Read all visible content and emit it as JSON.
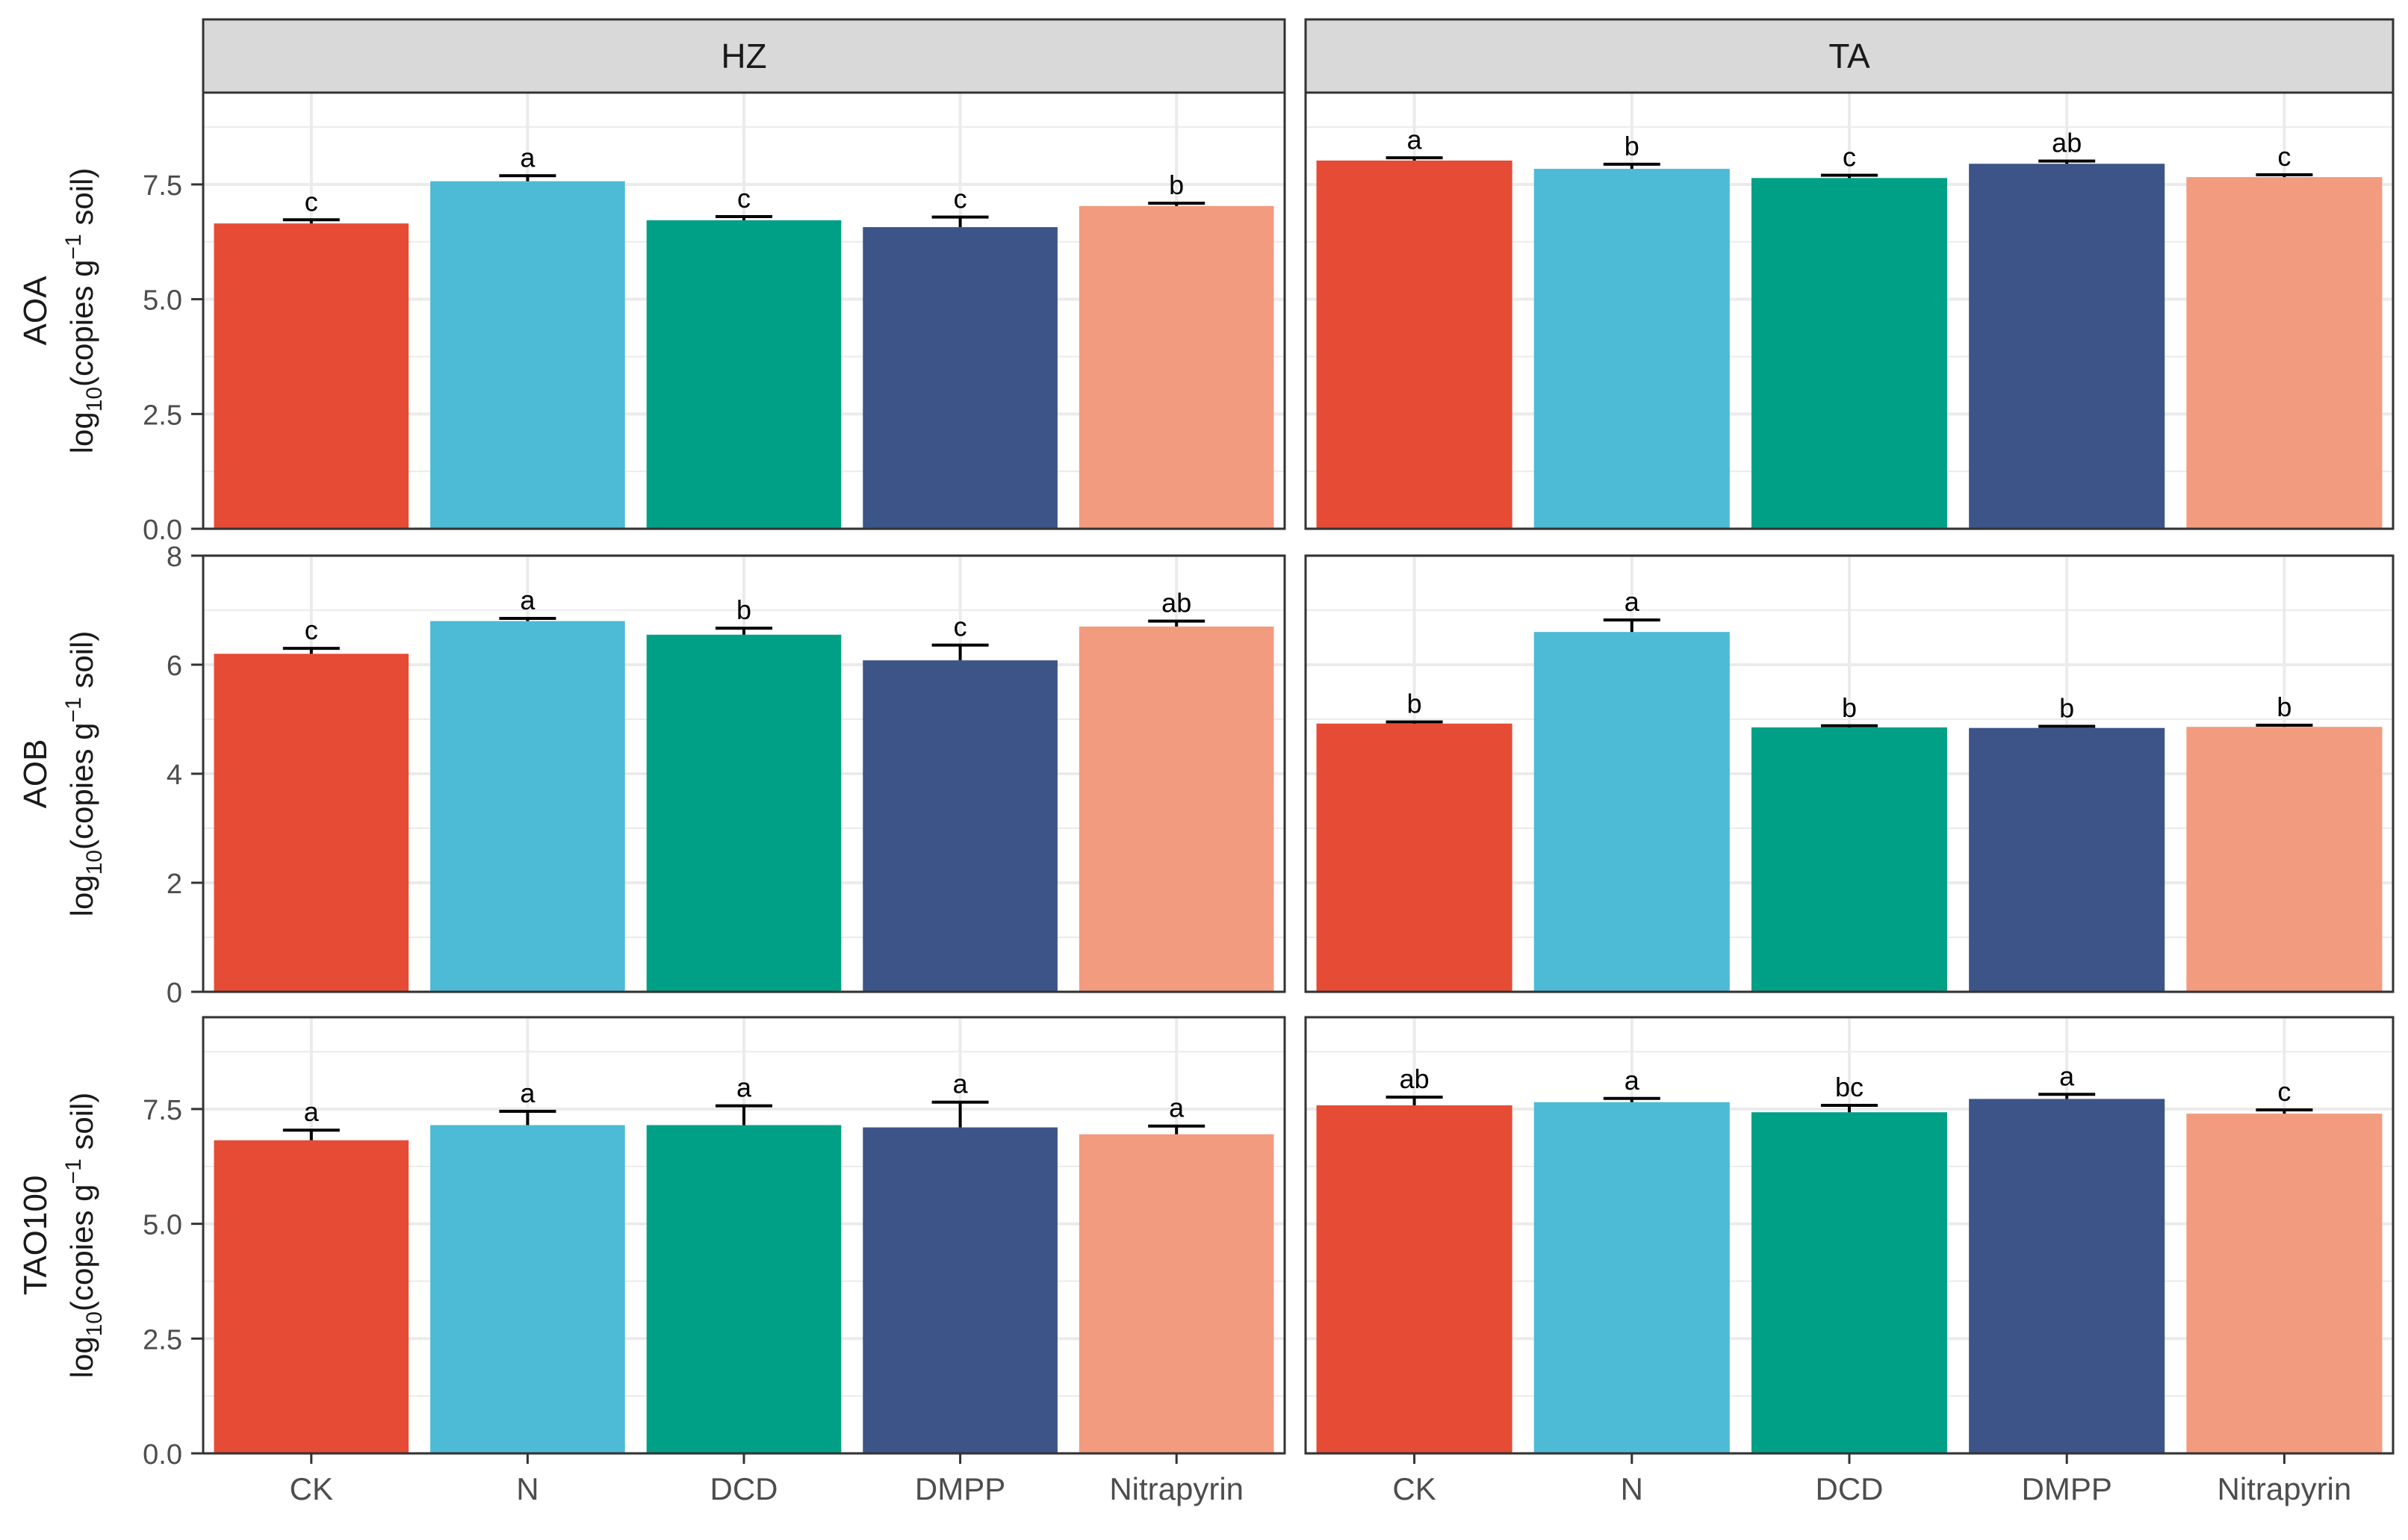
{
  "chart_data": {
    "type": "bar",
    "layout": "faceted-grid",
    "categories": [
      "CK",
      "N",
      "DCD",
      "DMPP",
      "Nitrapyrin"
    ],
    "colors": [
      "#E64B35",
      "#4DBBD5",
      "#00A087",
      "#3C5488",
      "#F39B7F"
    ],
    "facet_columns": [
      "HZ",
      "TA"
    ],
    "rows": [
      {
        "name": "AOA",
        "ylabel": "log10(copies g−1 soil)",
        "ylabel_parts": {
          "pre": "log",
          "sub": "10",
          "mid": "(copies g",
          "sup": "−1",
          "post": " soil)"
        },
        "ylim": [
          0,
          9.5
        ],
        "ticks": [
          0,
          2.5,
          5,
          7.5
        ],
        "tick_labels": [
          "0.0",
          "2.5",
          "5.0",
          "7.5"
        ],
        "panels": {
          "HZ": {
            "values": [
              6.65,
              7.57,
              6.72,
              6.57,
              7.03
            ],
            "errors": [
              0.08,
              0.12,
              0.08,
              0.22,
              0.06
            ],
            "letters": [
              "c",
              "a",
              "c",
              "c",
              "b"
            ]
          },
          "TA": {
            "values": [
              8.02,
              7.84,
              7.64,
              7.95,
              7.66
            ],
            "errors": [
              0.06,
              0.1,
              0.06,
              0.06,
              0.05
            ],
            "letters": [
              "a",
              "b",
              "c",
              "ab",
              "c"
            ]
          }
        }
      },
      {
        "name": "AOB",
        "ylabel": "log10(copies g−1 soil)",
        "ylabel_parts": {
          "pre": "log",
          "sub": "10",
          "mid": "(copies g",
          "sup": "−1",
          "post": " soil)"
        },
        "ylim": [
          0,
          8.0
        ],
        "ticks": [
          0,
          2,
          4,
          6,
          8
        ],
        "tick_labels": [
          "0",
          "2",
          "4",
          "6",
          "8"
        ],
        "panels": {
          "HZ": {
            "values": [
              6.2,
              6.8,
              6.55,
              6.08,
              6.7
            ],
            "errors": [
              0.1,
              0.05,
              0.12,
              0.28,
              0.1
            ],
            "letters": [
              "c",
              "a",
              "b",
              "c",
              "ab"
            ]
          },
          "TA": {
            "values": [
              4.92,
              6.6,
              4.85,
              4.84,
              4.86
            ],
            "errors": [
              0.03,
              0.22,
              0.03,
              0.03,
              0.03
            ],
            "letters": [
              "b",
              "a",
              "b",
              "b",
              "b"
            ]
          }
        }
      },
      {
        "name": "TAO100",
        "ylabel": "log10(copies g−1 soil)",
        "ylabel_parts": {
          "pre": "log",
          "sub": "10",
          "mid": "(copies g",
          "sup": "−1",
          "post": " soil)"
        },
        "ylim": [
          0,
          9.5
        ],
        "ticks": [
          0,
          2.5,
          5,
          7.5
        ],
        "tick_labels": [
          "0.0",
          "2.5",
          "5.0",
          "7.5"
        ],
        "panels": {
          "HZ": {
            "values": [
              6.82,
              7.15,
              7.15,
              7.1,
              6.95
            ],
            "errors": [
              0.22,
              0.3,
              0.42,
              0.55,
              0.18
            ],
            "letters": [
              "a",
              "a",
              "a",
              "a",
              "a"
            ]
          },
          "TA": {
            "values": [
              7.58,
              7.65,
              7.43,
              7.72,
              7.4
            ],
            "errors": [
              0.18,
              0.08,
              0.15,
              0.1,
              0.08
            ],
            "letters": [
              "ab",
              "a",
              "bc",
              "a",
              "c"
            ]
          }
        }
      }
    ]
  }
}
